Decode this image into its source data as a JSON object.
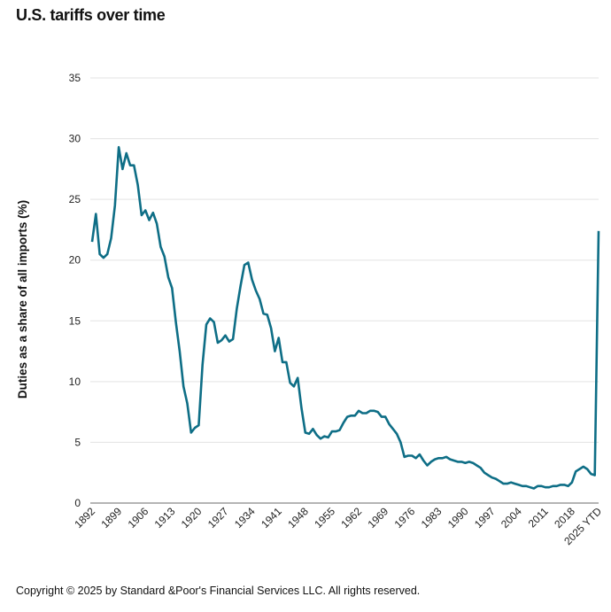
{
  "title": "U.S. tariffs over time",
  "footer": "Copyright © 2025 by Standard &Poor's Financial Services LLC. All rights reserved.",
  "chart_data": {
    "type": "line",
    "title": "U.S. tariffs over time",
    "xlabel": "",
    "ylabel": "Duties as a share of all imports (%)",
    "ylim": [
      0,
      35
    ],
    "yticks": [
      0,
      5,
      10,
      15,
      20,
      25,
      30,
      35
    ],
    "xlim": [
      1892,
      2025
    ],
    "xticks": [
      1892,
      1899,
      1906,
      1913,
      1920,
      1927,
      1934,
      1941,
      1948,
      1955,
      1962,
      1969,
      1976,
      1983,
      1990,
      1997,
      2004,
      2011,
      2018,
      2025
    ],
    "xtick_labels": [
      "1892",
      "1899",
      "1906",
      "1913",
      "1920",
      "1927",
      "1934",
      "1941",
      "1948",
      "1955",
      "1962",
      "1969",
      "1976",
      "1983",
      "1990",
      "1997",
      "2004",
      "2011",
      "2018",
      "2025 YTD"
    ],
    "grid": "horizontal",
    "line_color": "#0e6e86",
    "x": [
      1892,
      1893,
      1894,
      1895,
      1896,
      1897,
      1898,
      1899,
      1900,
      1901,
      1902,
      1903,
      1904,
      1905,
      1906,
      1907,
      1908,
      1909,
      1910,
      1911,
      1912,
      1913,
      1914,
      1915,
      1916,
      1917,
      1918,
      1919,
      1920,
      1921,
      1922,
      1923,
      1924,
      1925,
      1926,
      1927,
      1928,
      1929,
      1930,
      1931,
      1932,
      1933,
      1934,
      1935,
      1936,
      1937,
      1938,
      1939,
      1940,
      1941,
      1942,
      1943,
      1944,
      1945,
      1946,
      1947,
      1948,
      1949,
      1950,
      1951,
      1952,
      1953,
      1954,
      1955,
      1956,
      1957,
      1958,
      1959,
      1960,
      1961,
      1962,
      1963,
      1964,
      1965,
      1966,
      1967,
      1968,
      1969,
      1970,
      1971,
      1972,
      1973,
      1974,
      1975,
      1976,
      1977,
      1978,
      1979,
      1980,
      1981,
      1982,
      1983,
      1984,
      1985,
      1986,
      1987,
      1988,
      1989,
      1990,
      1991,
      1992,
      1993,
      1994,
      1995,
      1996,
      1997,
      1998,
      1999,
      2000,
      2001,
      2002,
      2003,
      2004,
      2005,
      2006,
      2007,
      2008,
      2009,
      2010,
      2011,
      2012,
      2013,
      2014,
      2015,
      2016,
      2017,
      2018,
      2019,
      2020,
      2021,
      2022,
      2023,
      2024,
      2025
    ],
    "values": [
      21.5,
      23.8,
      20.5,
      20.2,
      20.5,
      21.8,
      24.5,
      29.3,
      27.5,
      28.8,
      27.8,
      27.8,
      26.2,
      23.7,
      24.1,
      23.3,
      23.9,
      23.0,
      21.1,
      20.3,
      18.6,
      17.7,
      14.9,
      12.5,
      9.6,
      8.2,
      5.8,
      6.2,
      6.4,
      11.4,
      14.7,
      15.2,
      14.9,
      13.2,
      13.4,
      13.8,
      13.3,
      13.5,
      16.0,
      17.9,
      19.6,
      19.8,
      18.4,
      17.5,
      16.8,
      15.6,
      15.5,
      14.4,
      12.5,
      13.6,
      11.6,
      11.6,
      9.9,
      9.6,
      10.3,
      7.8,
      5.8,
      5.7,
      6.1,
      5.6,
      5.3,
      5.5,
      5.4,
      5.9,
      5.9,
      6.0,
      6.6,
      7.1,
      7.2,
      7.2,
      7.6,
      7.4,
      7.4,
      7.6,
      7.6,
      7.5,
      7.1,
      7.1,
      6.5,
      6.1,
      5.7,
      5.0,
      3.8,
      3.9,
      3.9,
      3.7,
      4.0,
      3.5,
      3.1,
      3.4,
      3.6,
      3.7,
      3.7,
      3.8,
      3.6,
      3.5,
      3.4,
      3.4,
      3.3,
      3.4,
      3.3,
      3.1,
      2.9,
      2.5,
      2.3,
      2.1,
      2.0,
      1.8,
      1.6,
      1.6,
      1.7,
      1.6,
      1.5,
      1.4,
      1.4,
      1.3,
      1.2,
      1.4,
      1.4,
      1.3,
      1.3,
      1.4,
      1.4,
      1.5,
      1.5,
      1.4,
      1.7,
      2.6,
      2.8,
      3.0,
      2.8,
      2.4,
      2.3,
      22.4
    ]
  }
}
